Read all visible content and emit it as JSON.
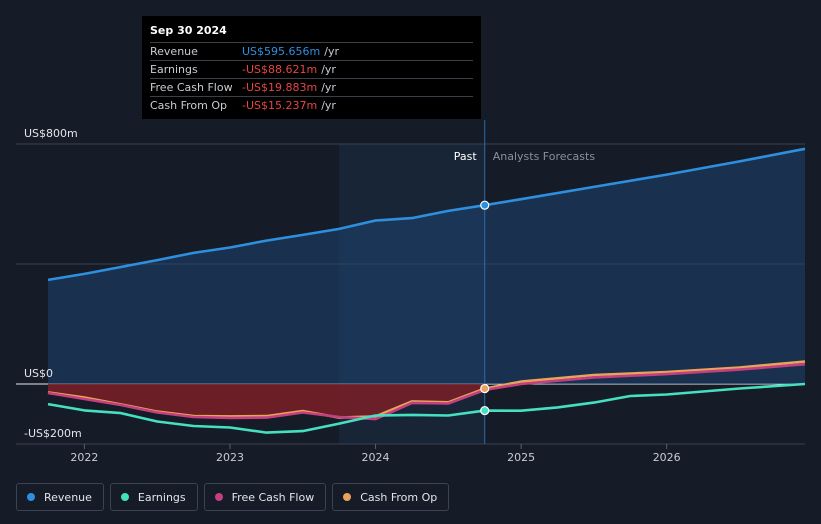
{
  "tooltip": {
    "date": "Sep 30 2024",
    "rows": [
      {
        "label": "Revenue",
        "value": "US$595.656m",
        "unit": "/yr",
        "color": "#2e8fdf"
      },
      {
        "label": "Earnings",
        "value": "-US$88.621m",
        "unit": "/yr",
        "color": "#e64545"
      },
      {
        "label": "Free Cash Flow",
        "value": "-US$19.883m",
        "unit": "/yr",
        "color": "#e64545"
      },
      {
        "label": "Cash From Op",
        "value": "-US$15.237m",
        "unit": "/yr",
        "color": "#e64545"
      }
    ]
  },
  "chart_data": {
    "type": "line",
    "y_tick_labels": [
      "US$800m",
      "US$0",
      "-US$200m"
    ],
    "x_tick_labels": [
      "2022",
      "2023",
      "2024",
      "2025",
      "2026"
    ],
    "ylim": [
      -200,
      800
    ],
    "region_labels": {
      "past": "Past",
      "forecast": "Analysts Forecasts"
    },
    "past_end": 2024.75,
    "series": [
      {
        "name": "Revenue",
        "color": "#2e8fdf",
        "points": [
          [
            2021.75,
            347
          ],
          [
            2022.0,
            367
          ],
          [
            2022.25,
            390
          ],
          [
            2022.5,
            413
          ],
          [
            2022.75,
            437
          ],
          [
            2023.0,
            455
          ],
          [
            2023.25,
            478
          ],
          [
            2023.5,
            497
          ],
          [
            2023.75,
            517
          ],
          [
            2024.0,
            545
          ],
          [
            2024.25,
            553
          ],
          [
            2024.5,
            577
          ],
          [
            2024.75,
            596
          ],
          [
            2025.0,
            616
          ],
          [
            2025.5,
            657
          ],
          [
            2026.0,
            698
          ],
          [
            2026.5,
            742
          ],
          [
            2026.95,
            784
          ]
        ]
      },
      {
        "name": "Earnings",
        "color": "#45e0c0",
        "points": [
          [
            2021.75,
            -67
          ],
          [
            2022.0,
            -88
          ],
          [
            2022.25,
            -97
          ],
          [
            2022.5,
            -125
          ],
          [
            2022.75,
            -140
          ],
          [
            2023.0,
            -145
          ],
          [
            2023.25,
            -162
          ],
          [
            2023.5,
            -157
          ],
          [
            2023.75,
            -132
          ],
          [
            2024.0,
            -105
          ],
          [
            2024.25,
            -103
          ],
          [
            2024.5,
            -105
          ],
          [
            2024.75,
            -88.6
          ],
          [
            2025.0,
            -89
          ],
          [
            2025.25,
            -78
          ],
          [
            2025.5,
            -62
          ],
          [
            2025.75,
            -40
          ],
          [
            2026.0,
            -35
          ],
          [
            2026.5,
            -15
          ],
          [
            2026.95,
            0
          ]
        ]
      },
      {
        "name": "Free Cash Flow",
        "color": "#c43f80",
        "points": [
          [
            2021.75,
            -30
          ],
          [
            2022.0,
            -50
          ],
          [
            2022.25,
            -70
          ],
          [
            2022.5,
            -95
          ],
          [
            2022.75,
            -110
          ],
          [
            2023.0,
            -113
          ],
          [
            2023.25,
            -112
          ],
          [
            2023.5,
            -95
          ],
          [
            2023.75,
            -110
          ],
          [
            2024.0,
            -117
          ],
          [
            2024.25,
            -63
          ],
          [
            2024.5,
            -65
          ],
          [
            2024.75,
            -19.9
          ],
          [
            2025.0,
            0
          ],
          [
            2025.5,
            22
          ],
          [
            2026.0,
            33
          ],
          [
            2026.5,
            48
          ],
          [
            2026.95,
            66
          ]
        ]
      },
      {
        "name": "Cash From Op",
        "color": "#e8a45a",
        "points": [
          [
            2021.75,
            -28
          ],
          [
            2022.0,
            -45
          ],
          [
            2022.25,
            -68
          ],
          [
            2022.5,
            -92
          ],
          [
            2022.75,
            -107
          ],
          [
            2023.0,
            -108
          ],
          [
            2023.25,
            -107
          ],
          [
            2023.5,
            -90
          ],
          [
            2023.75,
            -112
          ],
          [
            2024.0,
            -108
          ],
          [
            2024.25,
            -58
          ],
          [
            2024.5,
            -61
          ],
          [
            2024.75,
            -15.2
          ],
          [
            2025.0,
            8
          ],
          [
            2025.5,
            30
          ],
          [
            2026.0,
            40
          ],
          [
            2026.5,
            55
          ],
          [
            2026.95,
            75
          ]
        ]
      }
    ]
  },
  "legend": [
    {
      "label": "Revenue",
      "color": "#2e8fdf"
    },
    {
      "label": "Earnings",
      "color": "#45e0c0"
    },
    {
      "label": "Free Cash Flow",
      "color": "#c43f80"
    },
    {
      "label": "Cash From Op",
      "color": "#e8a45a"
    }
  ]
}
